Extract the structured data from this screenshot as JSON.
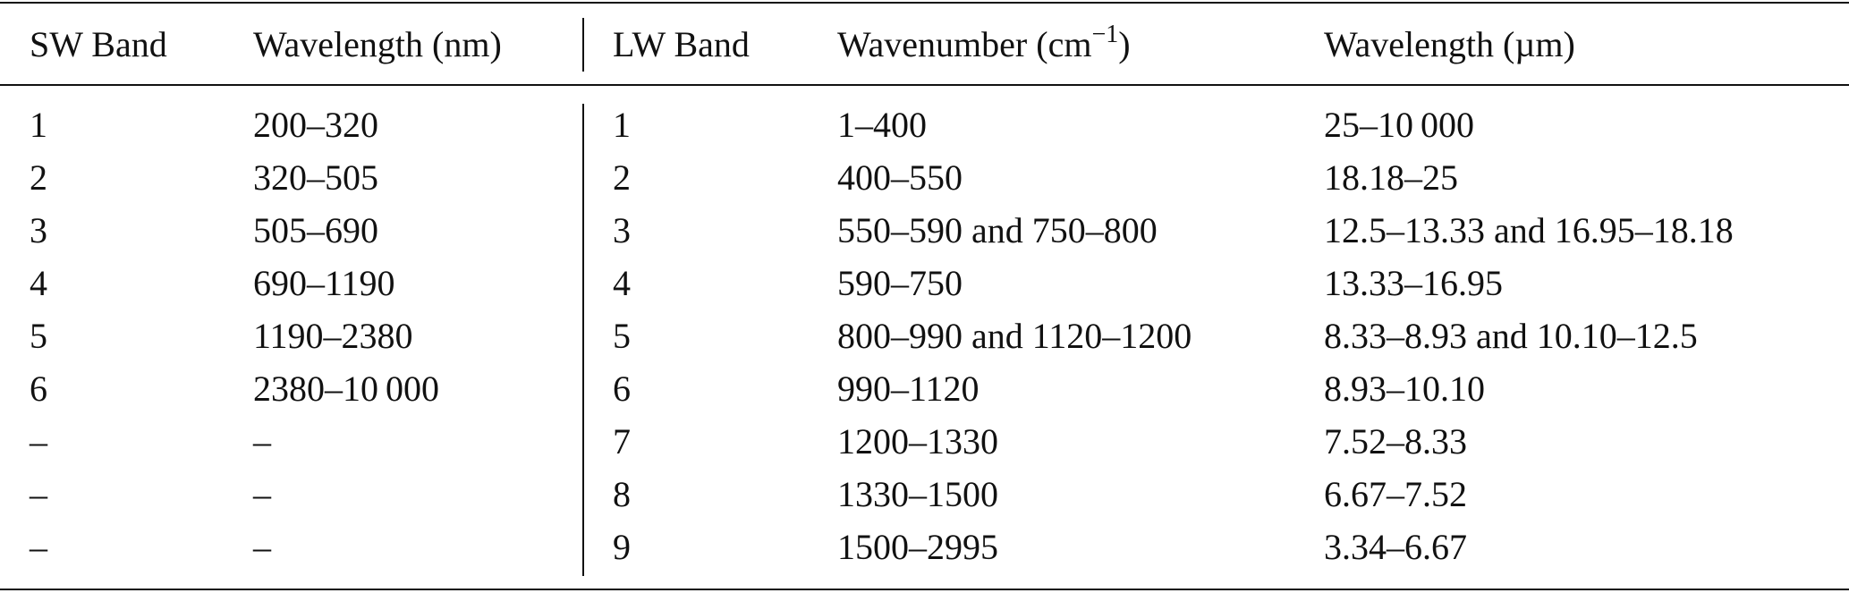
{
  "table": {
    "header": [
      "SW Band",
      "Wavelength (nm)",
      "LW Band",
      {
        "text": "Wavenumber (cm",
        "sup": "−1",
        "tail": ")"
      },
      "Wavelength (µm)"
    ],
    "rows": [
      [
        "1",
        "200–320",
        "1",
        "1–400",
        "25–10 000"
      ],
      [
        "2",
        "320–505",
        "2",
        "400–550",
        "18.18–25"
      ],
      [
        "3",
        "505–690",
        "3",
        "550–590 and 750–800",
        "12.5–13.33 and 16.95–18.18"
      ],
      [
        "4",
        "690–1190",
        "4",
        "590–750",
        "13.33–16.95"
      ],
      [
        "5",
        "1190–2380",
        "5",
        "800–990 and 1120–1200",
        "8.33–8.93 and 10.10–12.5"
      ],
      [
        "6",
        "2380–10 000",
        "6",
        "990–1120",
        "8.93–10.10"
      ],
      [
        "–",
        "–",
        "7",
        "1200–1330",
        "7.52–8.33"
      ],
      [
        "–",
        "–",
        "8",
        "1330–1500",
        "6.67–7.52"
      ],
      [
        "–",
        "–",
        "9",
        "1500–2995",
        "3.34–6.67"
      ]
    ]
  }
}
